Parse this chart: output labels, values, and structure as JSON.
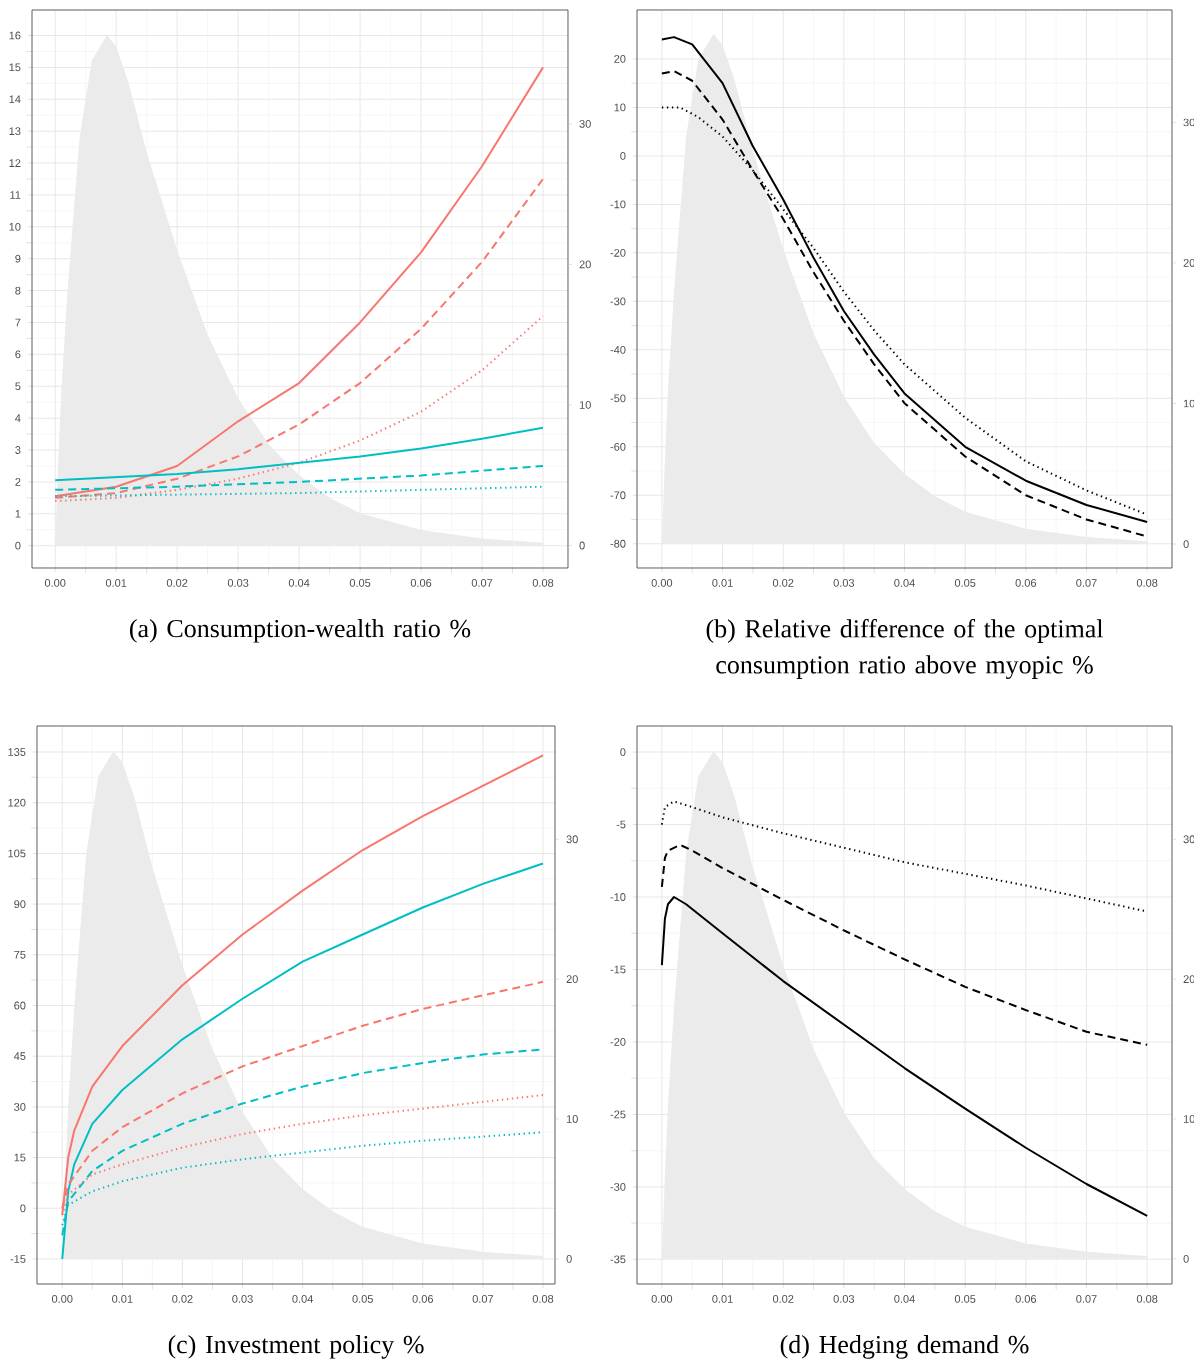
{
  "chart_data": [
    {
      "type": "line",
      "title": "(a) Consumption-wealth ratio %",
      "grid": true,
      "xlim": [
        -0.0038,
        0.0841
      ],
      "ylim": [
        -0.7,
        16.8
      ],
      "y2lim": [
        -1.6,
        38.1
      ],
      "xticks": [
        {
          "value": 0,
          "label": "0.00"
        },
        {
          "value": 0.01,
          "label": "0.01"
        },
        {
          "value": 0.02,
          "label": "0.02"
        },
        {
          "value": 0.03,
          "label": "0.03"
        },
        {
          "value": 0.04,
          "label": "0.04"
        },
        {
          "value": 0.05,
          "label": "0.05"
        },
        {
          "value": 0.06,
          "label": "0.06"
        },
        {
          "value": 0.07,
          "label": "0.07"
        },
        {
          "value": 0.08,
          "label": "0.08"
        }
      ],
      "yticks": [
        0,
        1,
        2,
        3,
        4,
        5,
        6,
        7,
        8,
        9,
        10,
        11,
        12,
        13,
        14,
        15,
        16
      ],
      "y2ticks": [
        0,
        10,
        20,
        30
      ],
      "series": [
        {
          "type": "area",
          "axis": "y2",
          "color": "#ebebeb",
          "x": [
            0,
            0.0005,
            0.001,
            0.002,
            0.004,
            0.006,
            0.0085,
            0.01,
            0.012,
            0.015,
            0.02,
            0.025,
            0.03,
            0.035,
            0.04,
            0.045,
            0.05,
            0.06,
            0.07,
            0.08
          ],
          "values": [
            0,
            6,
            11,
            18,
            29,
            34.5,
            36.3,
            35.5,
            33,
            28,
            21,
            15,
            10.5,
            7.2,
            5,
            3.4,
            2.3,
            1.1,
            0.5,
            0.2
          ]
        },
        {
          "color": "#f8766d",
          "line_style": "solid",
          "x": [
            0,
            0.01,
            0.02,
            0.03,
            0.04,
            0.05,
            0.06,
            0.07,
            0.08
          ],
          "values": [
            1.55,
            1.85,
            2.5,
            3.9,
            5.1,
            7.0,
            9.2,
            11.9,
            15.0
          ]
        },
        {
          "color": "#f8766d",
          "line_style": "dashed",
          "x": [
            0,
            0.01,
            0.02,
            0.03,
            0.04,
            0.05,
            0.06,
            0.07,
            0.08
          ],
          "values": [
            1.5,
            1.65,
            2.1,
            2.8,
            3.8,
            5.1,
            6.8,
            8.9,
            11.5
          ]
        },
        {
          "color": "#f8766d",
          "line_style": "dotted",
          "x": [
            0,
            0.01,
            0.02,
            0.03,
            0.04,
            0.05,
            0.06,
            0.07,
            0.08
          ],
          "values": [
            1.4,
            1.5,
            1.75,
            2.1,
            2.6,
            3.3,
            4.2,
            5.5,
            7.2
          ]
        },
        {
          "color": "#00bfc4",
          "line_style": "solid",
          "x": [
            0,
            0.01,
            0.02,
            0.03,
            0.04,
            0.05,
            0.06,
            0.07,
            0.08
          ],
          "values": [
            2.05,
            2.15,
            2.25,
            2.4,
            2.6,
            2.8,
            3.05,
            3.35,
            3.7
          ]
        },
        {
          "color": "#00bfc4",
          "line_style": "dashed",
          "x": [
            0,
            0.02,
            0.04,
            0.06,
            0.08
          ],
          "values": [
            1.75,
            1.85,
            2.0,
            2.2,
            2.5
          ]
        },
        {
          "color": "#00bfc4",
          "line_style": "dotted",
          "x": [
            0,
            0.02,
            0.04,
            0.06,
            0.08
          ],
          "values": [
            1.55,
            1.6,
            1.65,
            1.75,
            1.85
          ]
        }
      ]
    },
    {
      "type": "line",
      "title": "(b) Relative difference of the optimal consumption ratio above myopic %",
      "grid": true,
      "xlim": [
        -0.0041,
        0.0841
      ],
      "ylim": [
        -85,
        30.1
      ],
      "y2lim": [
        -1.7,
        38.0
      ],
      "xticks": [
        {
          "value": 0,
          "label": "0.00"
        },
        {
          "value": 0.01,
          "label": "0.01"
        },
        {
          "value": 0.02,
          "label": "0.02"
        },
        {
          "value": 0.03,
          "label": "0.03"
        },
        {
          "value": 0.04,
          "label": "0.04"
        },
        {
          "value": 0.05,
          "label": "0.05"
        },
        {
          "value": 0.06,
          "label": "0.06"
        },
        {
          "value": 0.07,
          "label": "0.07"
        },
        {
          "value": 0.08,
          "label": "0.08"
        }
      ],
      "yticks": [
        -80,
        -70,
        -60,
        -50,
        -40,
        -30,
        -20,
        -10,
        0,
        10,
        20
      ],
      "y2ticks": [
        0,
        10,
        20,
        30
      ],
      "series": [
        {
          "type": "area",
          "axis": "y2",
          "color": "#ebebeb",
          "x": [
            0,
            0.0005,
            0.001,
            0.002,
            0.004,
            0.006,
            0.0085,
            0.01,
            0.012,
            0.015,
            0.02,
            0.025,
            0.03,
            0.035,
            0.04,
            0.045,
            0.05,
            0.06,
            0.07,
            0.08
          ],
          "values": [
            0,
            6,
            11,
            18,
            29,
            34.5,
            36.3,
            35.5,
            33,
            28,
            21,
            15,
            10.5,
            7.2,
            5,
            3.4,
            2.3,
            1.1,
            0.5,
            0.2
          ]
        },
        {
          "color": "#000000",
          "line_style": "solid",
          "x": [
            0,
            0.002,
            0.005,
            0.01,
            0.015,
            0.02,
            0.025,
            0.03,
            0.035,
            0.04,
            0.05,
            0.06,
            0.07,
            0.08
          ],
          "values": [
            24,
            24.5,
            23,
            15,
            2,
            -9,
            -21,
            -32,
            -41,
            -49,
            -60,
            -67,
            -72,
            -75.5
          ]
        },
        {
          "color": "#000000",
          "line_style": "dashed",
          "x": [
            0,
            0.002,
            0.005,
            0.01,
            0.015,
            0.02,
            0.025,
            0.03,
            0.035,
            0.04,
            0.05,
            0.06,
            0.07,
            0.08
          ],
          "values": [
            17,
            17.5,
            15.5,
            7.5,
            -3,
            -13,
            -24,
            -34,
            -43,
            -51,
            -62,
            -70,
            -75,
            -78.5
          ]
        },
        {
          "color": "#000000",
          "line_style": "dotted",
          "x": [
            0,
            0.003,
            0.006,
            0.01,
            0.015,
            0.02,
            0.025,
            0.03,
            0.035,
            0.04,
            0.05,
            0.06,
            0.07,
            0.08
          ],
          "values": [
            10,
            10,
            8,
            4,
            -3,
            -11,
            -19,
            -28,
            -36,
            -43,
            -54,
            -63,
            -69,
            -74
          ]
        }
      ]
    },
    {
      "type": "line",
      "title": "(c) Investment policy %",
      "grid": true,
      "xlim": [
        -0.0042,
        0.082
      ],
      "ylim": [
        -22.4,
        142.7
      ],
      "y2lim": [
        -1.8,
        38.1
      ],
      "xticks": [
        {
          "value": 0,
          "label": "0.00"
        },
        {
          "value": 0.01,
          "label": "0.01"
        },
        {
          "value": 0.02,
          "label": "0.02"
        },
        {
          "value": 0.03,
          "label": "0.03"
        },
        {
          "value": 0.04,
          "label": "0.04"
        },
        {
          "value": 0.05,
          "label": "0.05"
        },
        {
          "value": 0.06,
          "label": "0.06"
        },
        {
          "value": 0.07,
          "label": "0.07"
        },
        {
          "value": 0.08,
          "label": "0.08"
        }
      ],
      "yticks": [
        -15,
        0,
        15,
        30,
        45,
        60,
        75,
        90,
        105,
        120,
        135
      ],
      "y2ticks": [
        0,
        10,
        20,
        30
      ],
      "series": [
        {
          "type": "area",
          "axis": "y2",
          "color": "#ebebeb",
          "x": [
            0,
            0.0005,
            0.001,
            0.002,
            0.004,
            0.006,
            0.0085,
            0.01,
            0.012,
            0.015,
            0.02,
            0.025,
            0.03,
            0.035,
            0.04,
            0.045,
            0.05,
            0.06,
            0.07,
            0.08
          ],
          "values": [
            0,
            6,
            11,
            18,
            29,
            34.5,
            36.3,
            35.5,
            33,
            28,
            21,
            15,
            10.5,
            7.2,
            5,
            3.4,
            2.3,
            1.1,
            0.5,
            0.2
          ]
        },
        {
          "color": "#f8766d",
          "line_style": "solid",
          "x": [
            0,
            0.001,
            0.002,
            0.005,
            0.01,
            0.02,
            0.03,
            0.04,
            0.05,
            0.06,
            0.07,
            0.08
          ],
          "values": [
            -2,
            15,
            23,
            36,
            48,
            66,
            81,
            94,
            106,
            116,
            125,
            134
          ]
        },
        {
          "color": "#00bfc4",
          "line_style": "solid",
          "x": [
            0,
            0.001,
            0.002,
            0.005,
            0.01,
            0.02,
            0.03,
            0.04,
            0.05,
            0.06,
            0.07,
            0.08
          ],
          "values": [
            -15,
            5,
            13,
            25,
            35,
            50,
            62,
            73,
            81,
            89,
            96,
            102
          ]
        },
        {
          "color": "#f8766d",
          "line_style": "dashed",
          "x": [
            0,
            0.001,
            0.005,
            0.01,
            0.02,
            0.03,
            0.04,
            0.05,
            0.06,
            0.07,
            0.08
          ],
          "values": [
            0,
            7,
            17,
            24,
            34,
            42,
            48,
            54,
            59,
            63,
            67
          ]
        },
        {
          "color": "#00bfc4",
          "line_style": "dashed",
          "x": [
            0,
            0.001,
            0.005,
            0.01,
            0.02,
            0.03,
            0.04,
            0.05,
            0.06,
            0.07,
            0.08
          ],
          "values": [
            -8,
            2,
            11,
            17,
            25,
            31,
            36,
            40,
            43,
            45.5,
            47
          ]
        },
        {
          "color": "#f8766d",
          "line_style": "dotted",
          "x": [
            0,
            0.001,
            0.005,
            0.01,
            0.02,
            0.03,
            0.04,
            0.05,
            0.06,
            0.07,
            0.08
          ],
          "values": [
            -2,
            4,
            10,
            13,
            18,
            22,
            25,
            27.5,
            29.5,
            31.5,
            33.5
          ]
        },
        {
          "color": "#00bfc4",
          "line_style": "dotted",
          "x": [
            0,
            0.001,
            0.005,
            0.01,
            0.02,
            0.03,
            0.04,
            0.05,
            0.06,
            0.07,
            0.08
          ],
          "values": [
            -5,
            1,
            5,
            8,
            12,
            14.5,
            16.5,
            18.5,
            20,
            21.2,
            22.5
          ]
        }
      ]
    },
    {
      "type": "line",
      "title": "(d) Hedging demand %",
      "grid": true,
      "xlim": [
        -0.0041,
        0.0841
      ],
      "ylim": [
        -36.7,
        1.8
      ],
      "y2lim": [
        -1.8,
        38.1
      ],
      "xticks": [
        {
          "value": 0,
          "label": "0.00"
        },
        {
          "value": 0.01,
          "label": "0.01"
        },
        {
          "value": 0.02,
          "label": "0.02"
        },
        {
          "value": 0.03,
          "label": "0.03"
        },
        {
          "value": 0.04,
          "label": "0.04"
        },
        {
          "value": 0.05,
          "label": "0.05"
        },
        {
          "value": 0.06,
          "label": "0.06"
        },
        {
          "value": 0.07,
          "label": "0.07"
        },
        {
          "value": 0.08,
          "label": "0.08"
        }
      ],
      "yticks": [
        -35,
        -30,
        -25,
        -20,
        -15,
        -10,
        -5,
        0
      ],
      "y2ticks": [
        0,
        10,
        20,
        30
      ],
      "series": [
        {
          "type": "area",
          "axis": "y2",
          "color": "#ebebeb",
          "x": [
            0,
            0.0005,
            0.001,
            0.002,
            0.004,
            0.006,
            0.0085,
            0.01,
            0.012,
            0.015,
            0.02,
            0.025,
            0.03,
            0.035,
            0.04,
            0.045,
            0.05,
            0.06,
            0.07,
            0.08
          ],
          "values": [
            0,
            6,
            11,
            18,
            29,
            34.5,
            36.3,
            35.5,
            33,
            28,
            21,
            15,
            10.5,
            7.2,
            5,
            3.4,
            2.3,
            1.1,
            0.5,
            0.2
          ]
        },
        {
          "color": "#000000",
          "line_style": "solid",
          "x": [
            0,
            0.0005,
            0.001,
            0.002,
            0.004,
            0.01,
            0.02,
            0.03,
            0.04,
            0.05,
            0.06,
            0.07,
            0.08
          ],
          "values": [
            -14.7,
            -11.5,
            -10.5,
            -10,
            -10.5,
            -12.5,
            -15.8,
            -18.8,
            -21.8,
            -24.6,
            -27.3,
            -29.8,
            -32
          ]
        },
        {
          "color": "#000000",
          "line_style": "dashed",
          "x": [
            0,
            0.0005,
            0.001,
            0.003,
            0.005,
            0.01,
            0.02,
            0.03,
            0.04,
            0.05,
            0.06,
            0.07,
            0.08
          ],
          "values": [
            -9.3,
            -7.3,
            -6.8,
            -6.4,
            -6.8,
            -8,
            -10.2,
            -12.3,
            -14.3,
            -16.2,
            -17.8,
            -19.3,
            -20.2
          ]
        },
        {
          "color": "#000000",
          "line_style": "dotted",
          "x": [
            0,
            0.0005,
            0.002,
            0.005,
            0.01,
            0.02,
            0.03,
            0.04,
            0.05,
            0.06,
            0.07,
            0.08
          ],
          "values": [
            -5,
            -3.8,
            -3.4,
            -3.8,
            -4.5,
            -5.6,
            -6.6,
            -7.6,
            -8.4,
            -9.2,
            -10.1,
            -11
          ]
        }
      ]
    }
  ]
}
